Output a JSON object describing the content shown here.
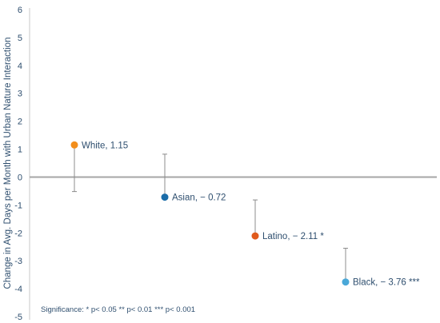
{
  "chart_data": {
    "type": "scatter",
    "ylabel": "Change in Avg. Days per Month with Urban Nature Interaction",
    "ylim": [
      -5,
      6
    ],
    "y_ticks": [
      "6",
      "5",
      "4",
      "3",
      "2",
      "1",
      "0",
      "-1",
      "-2",
      "-3",
      "-4",
      "-5"
    ],
    "grid": false,
    "points": [
      {
        "label": "White, 1.15",
        "value": 1.15,
        "error_low": -0.52,
        "error_high": 1.15,
        "color": "#f28e1c"
      },
      {
        "label": "Asian, − 0.72",
        "value": -0.72,
        "error_low": -0.72,
        "error_high": 0.82,
        "color": "#1a6ca8"
      },
      {
        "label": "Latino, − 2.11 *",
        "value": -2.11,
        "error_low": -2.11,
        "error_high": -0.82,
        "color": "#e05a1c"
      },
      {
        "label": "Black, − 3.76 ***",
        "value": -3.76,
        "error_low": -3.76,
        "error_high": -2.55,
        "color": "#4aa8d8"
      }
    ],
    "annotation": "Significance: * p< 0.05  ** p< 0.01  *** p< 0.001"
  }
}
